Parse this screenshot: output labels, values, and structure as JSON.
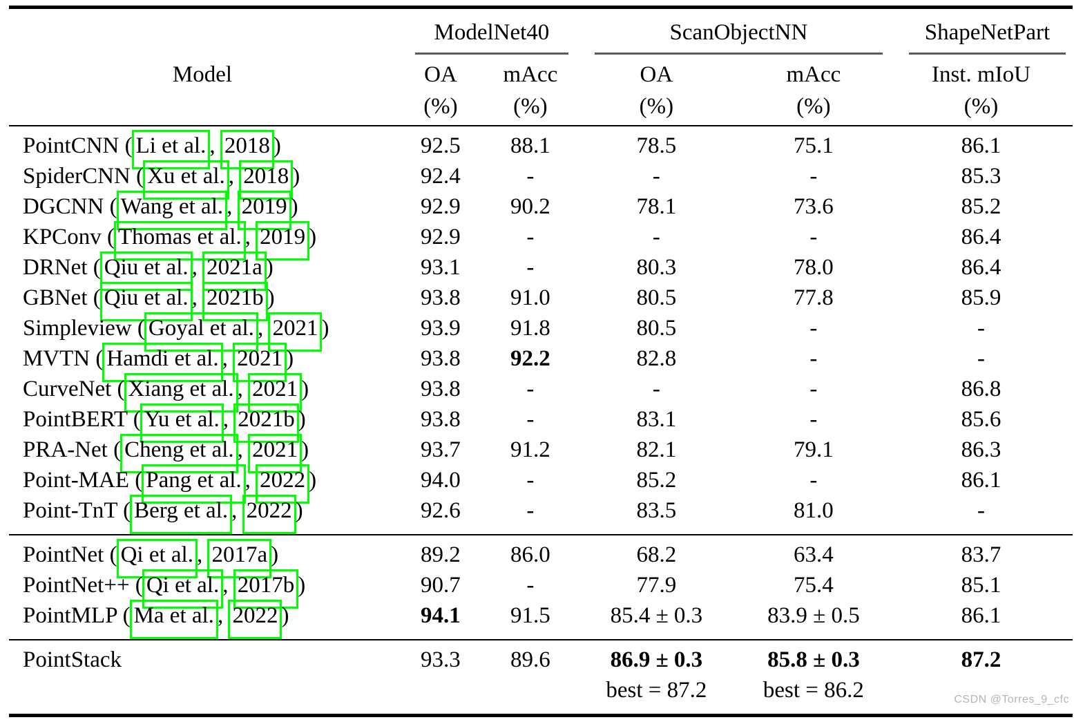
{
  "colors": {
    "link_box": "#00ff00",
    "rule": "#000000",
    "group_rule": "#5a5a5a",
    "watermark": "#b5b5b5"
  },
  "watermark": "CSDN @Torres_9_cfc",
  "table": {
    "model_header": "Model",
    "unit": "(%)",
    "citation_separator": ", ",
    "groups": [
      {
        "label": "ModelNet40",
        "cols": [
          "OA",
          "mAcc"
        ]
      },
      {
        "label": "ScanObjectNN",
        "cols": [
          "OA",
          "mAcc"
        ]
      },
      {
        "label": "ShapeNetPart",
        "cols": [
          "Inst. mIoU"
        ]
      }
    ],
    "sections": [
      {
        "rows": [
          {
            "model": {
              "prefix": "PointCNN (",
              "authors": "Li et al.",
              "year": "2018",
              "suffix": ")"
            },
            "values": [
              "92.5",
              "88.1",
              "78.5",
              "75.1",
              "86.1"
            ]
          },
          {
            "model": {
              "prefix": "SpiderCNN (",
              "authors": "Xu et al.",
              "year": "2018",
              "suffix": ")"
            },
            "values": [
              "92.4",
              "-",
              "-",
              "-",
              "85.3"
            ]
          },
          {
            "model": {
              "prefix": "DGCNN (",
              "authors": "Wang et al.",
              "year": "2019",
              "suffix": ")"
            },
            "values": [
              "92.9",
              "90.2",
              "78.1",
              "73.6",
              "85.2"
            ]
          },
          {
            "model": {
              "prefix": "KPConv (",
              "authors": "Thomas et al.",
              "year": "2019",
              "suffix": ")"
            },
            "values": [
              "92.9",
              "-",
              "-",
              "-",
              "86.4"
            ]
          },
          {
            "model": {
              "prefix": "DRNet (",
              "authors": "Qiu et al.",
              "year": "2021a",
              "suffix": ")"
            },
            "values": [
              "93.1",
              "-",
              "80.3",
              "78.0",
              "86.4"
            ]
          },
          {
            "model": {
              "prefix": "GBNet (",
              "authors": "Qiu et al.",
              "year": "2021b",
              "suffix": ")"
            },
            "values": [
              "93.8",
              "91.0",
              "80.5",
              "77.8",
              "85.9"
            ]
          },
          {
            "model": {
              "prefix": "Simpleview (",
              "authors": "Goyal et al.",
              "year": "2021",
              "suffix": ")"
            },
            "values": [
              "93.9",
              "91.8",
              "80.5",
              "-",
              "-"
            ]
          },
          {
            "model": {
              "prefix": "MVTN (",
              "authors": "Hamdi et al.",
              "year": "2021",
              "suffix": ")"
            },
            "values": [
              "93.8",
              {
                "t": "92.2",
                "b": true
              },
              "82.8",
              "-",
              "-"
            ]
          },
          {
            "model": {
              "prefix": "CurveNet (",
              "authors": "Xiang et al.",
              "year": "2021",
              "suffix": ")"
            },
            "values": [
              "93.8",
              "-",
              "-",
              "-",
              "86.8"
            ]
          },
          {
            "model": {
              "prefix": "PointBERT (",
              "authors": "Yu et al.",
              "year": "2021b",
              "suffix": ")"
            },
            "values": [
              "93.8",
              "-",
              "83.1",
              "-",
              "85.6"
            ]
          },
          {
            "model": {
              "prefix": "PRA-Net (",
              "authors": "Cheng et al.",
              "year": "2021",
              "suffix": ")"
            },
            "values": [
              "93.7",
              "91.2",
              "82.1",
              "79.1",
              "86.3"
            ]
          },
          {
            "model": {
              "prefix": "Point-MAE (",
              "authors": "Pang et al.",
              "year": "2022",
              "suffix": ")"
            },
            "values": [
              "94.0",
              "-",
              "85.2",
              "-",
              "86.1"
            ]
          },
          {
            "model": {
              "prefix": "Point-TnT (",
              "authors": "Berg et al.",
              "year": "2022",
              "suffix": ")"
            },
            "values": [
              "92.6",
              "-",
              "83.5",
              "81.0",
              "-"
            ]
          }
        ]
      },
      {
        "rows": [
          {
            "model": {
              "prefix": "PointNet (",
              "authors": "Qi et al.",
              "year": "2017a",
              "suffix": ")"
            },
            "values": [
              "89.2",
              "86.0",
              "68.2",
              "63.4",
              "83.7"
            ]
          },
          {
            "model": {
              "prefix": "PointNet++ (",
              "authors": "Qi et al.",
              "year": "2017b",
              "suffix": ")"
            },
            "values": [
              "90.7",
              "-",
              "77.9",
              "75.4",
              "85.1"
            ]
          },
          {
            "model": {
              "prefix": "PointMLP (",
              "authors": "Ma et al.",
              "year": "2022",
              "suffix": ")"
            },
            "values": [
              {
                "t": "94.1",
                "b": true
              },
              "91.5",
              "85.4 ± 0.3",
              "83.9 ± 0.5",
              "86.1"
            ]
          }
        ]
      },
      {
        "rows": [
          {
            "model": {
              "prefix": "PointStack"
            },
            "values": [
              "93.3",
              "89.6",
              {
                "t": "86.9 ± 0.3",
                "b": true,
                "sub": "best = 87.2"
              },
              {
                "t": "85.8 ± 0.3",
                "b": true,
                "sub": "best = 86.2"
              },
              {
                "t": "87.2",
                "b": true
              }
            ]
          }
        ]
      }
    ]
  }
}
